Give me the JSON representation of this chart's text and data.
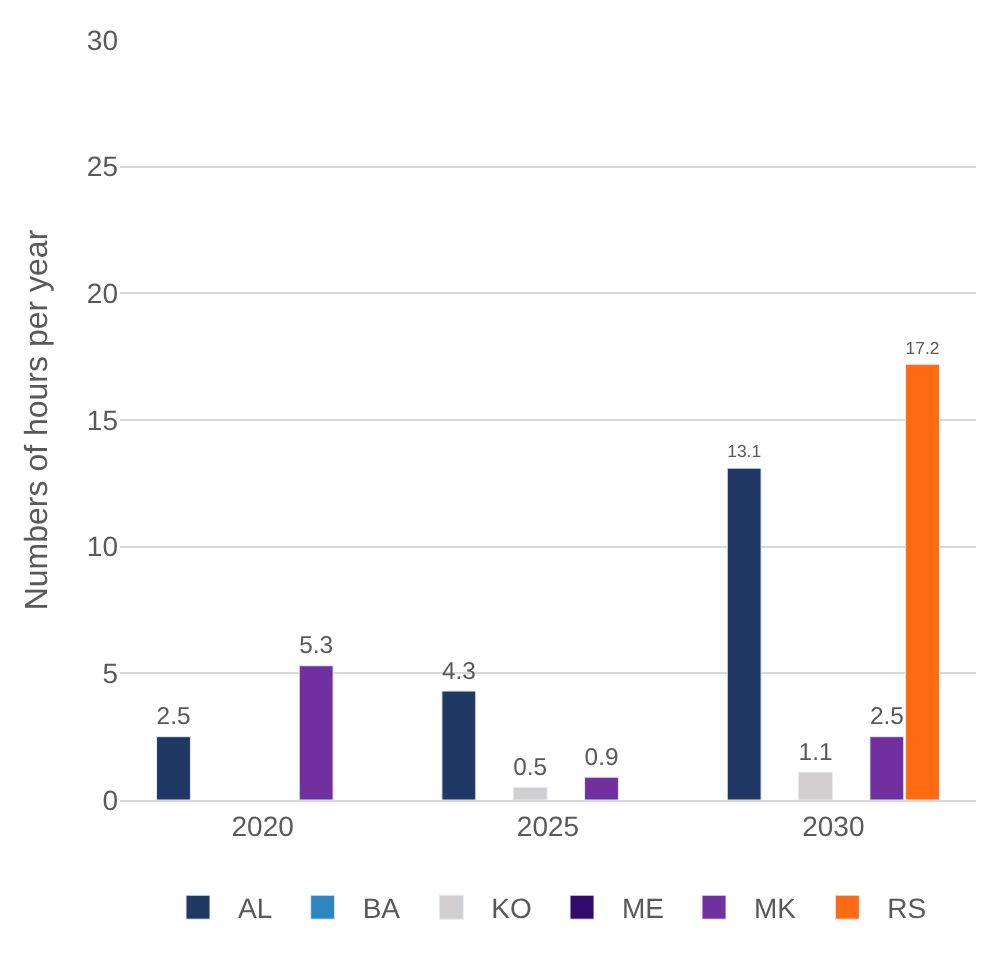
{
  "chart_data": {
    "type": "bar",
    "ylabel": "Numbers of hours per year",
    "categories": [
      "2020",
      "2025",
      "2030"
    ],
    "series": [
      {
        "name": "AL",
        "color": "#203864",
        "values": [
          2.5,
          4.3,
          13.1
        ]
      },
      {
        "name": "BA",
        "color": "#2e86c1",
        "values": [
          null,
          null,
          null
        ]
      },
      {
        "name": "KO",
        "color": "#d0cece",
        "values": [
          null,
          0.5,
          1.1
        ]
      },
      {
        "name": "ME",
        "color": "#330a6b",
        "values": [
          null,
          null,
          null
        ]
      },
      {
        "name": "MK",
        "color": "#7030a0",
        "values": [
          5.3,
          0.9,
          2.5
        ]
      },
      {
        "name": "RS",
        "color": "#ff6a13",
        "values": [
          null,
          null,
          17.2
        ]
      }
    ],
    "ylim": [
      0,
      30
    ],
    "yticks": [
      0,
      5,
      10,
      15,
      20,
      25,
      30
    ],
    "grid": "y",
    "legend": "bottom",
    "data_labels": true
  }
}
